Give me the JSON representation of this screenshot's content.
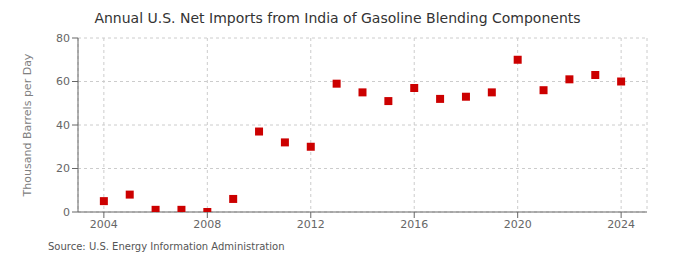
{
  "chart_data": {
    "type": "scatter",
    "title": "Annual U.S. Net Imports from India of Gasoline Blending Components",
    "ylabel": "Thousand Barrels per Day",
    "source": "Source: U.S. Energy Information Administration",
    "x": [
      2004,
      2005,
      2006,
      2007,
      2008,
      2009,
      2010,
      2011,
      2012,
      2013,
      2014,
      2015,
      2016,
      2017,
      2018,
      2019,
      2020,
      2021,
      2022,
      2023,
      2024
    ],
    "values": [
      5,
      8,
      1,
      1,
      0,
      6,
      37,
      32,
      30,
      59,
      55,
      51,
      57,
      52,
      53,
      55,
      70,
      56,
      61,
      63,
      60
    ],
    "color": "#cc0000",
    "marker": "square",
    "xlim": [
      2003,
      2025
    ],
    "xticks": [
      2004,
      2008,
      2012,
      2016,
      2020,
      2024
    ],
    "ylim": [
      0,
      80
    ],
    "yticks": [
      0,
      20,
      40,
      60,
      80
    ],
    "grid": true
  }
}
